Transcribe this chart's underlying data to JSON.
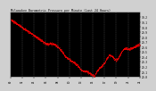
{
  "title": "Milwaukee Barometric Pressure per Minute (Last 24 Hours)",
  "background_color": "#d0d0d0",
  "plot_bg_color": "#000000",
  "line_color": "#ff0000",
  "grid_color": "#606060",
  "text_color": "#000000",
  "tick_color": "#000000",
  "ylim": [
    29.0,
    30.3
  ],
  "ytick_labels": [
    "30.2",
    "30.1",
    "30.0",
    "29.9",
    "29.8",
    "29.7",
    "29.6",
    "29.5",
    "29.4",
    "29.3",
    "29.2",
    "29.1",
    "29.0"
  ],
  "ytick_values": [
    30.2,
    30.1,
    30.0,
    29.9,
    29.8,
    29.7,
    29.6,
    29.5,
    29.4,
    29.3,
    29.2,
    29.1,
    29.0
  ],
  "num_points": 1440,
  "n_grid": 11,
  "marker_size": 0.8,
  "line_width": 0.5
}
